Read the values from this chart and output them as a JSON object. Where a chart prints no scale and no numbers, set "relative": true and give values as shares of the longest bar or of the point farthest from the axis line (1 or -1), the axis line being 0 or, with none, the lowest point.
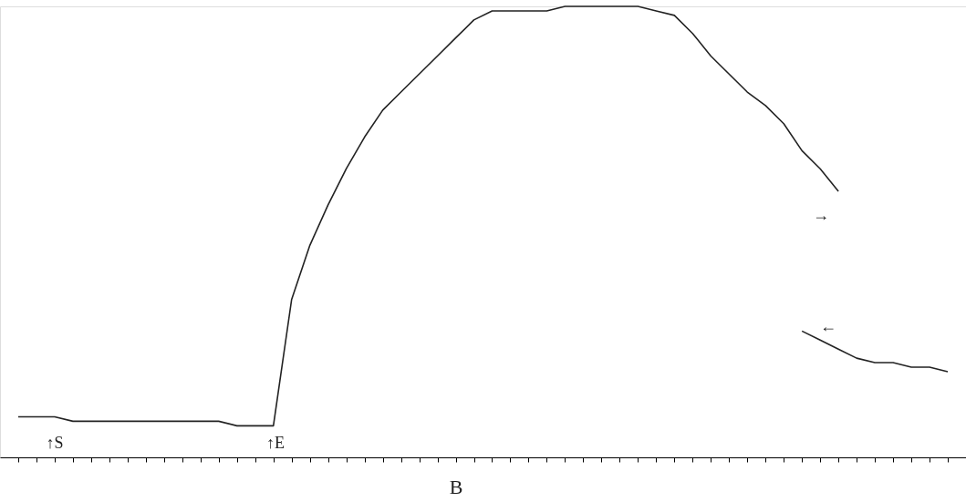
{
  "chart_data": {
    "type": "line",
    "relative": true,
    "xlabel": "B",
    "tick_labels": false,
    "grid": false,
    "categories": [
      null,
      null,
      null,
      null,
      null,
      null,
      null,
      null,
      null,
      null,
      null,
      null,
      null,
      null,
      null,
      null,
      null,
      null,
      null,
      null,
      null,
      null,
      null,
      null,
      null,
      null,
      null,
      null,
      null,
      null,
      null,
      null,
      null,
      null,
      null,
      null,
      null,
      null,
      null,
      null,
      null,
      null,
      null,
      null,
      null,
      null,
      null,
      null,
      null,
      null,
      null,
      null
    ],
    "series": [
      {
        "color": "#222222",
        "values": [
          0.09,
          0.09,
          0.09,
          0.08,
          0.08,
          0.08,
          0.08,
          0.08,
          0.08,
          0.08,
          0.08,
          0.08,
          0.07,
          0.07,
          0.07,
          0.35,
          0.47,
          0.56,
          0.64,
          0.71,
          0.77,
          0.81,
          0.85,
          0.89,
          0.93,
          0.97,
          0.99,
          0.99,
          0.99,
          0.99,
          1.0,
          1.0,
          1.0,
          1.0,
          1.0,
          0.99,
          0.98,
          0.94,
          0.89,
          0.85,
          0.81,
          0.78,
          0.74,
          0.68,
          0.64,
          0.59,
          null,
          null,
          null,
          null,
          null,
          null
        ]
      },
      {
        "color": "#222222",
        "values": [
          null,
          null,
          null,
          null,
          null,
          null,
          null,
          null,
          null,
          null,
          null,
          null,
          null,
          null,
          null,
          null,
          null,
          null,
          null,
          null,
          null,
          null,
          null,
          null,
          null,
          null,
          null,
          null,
          null,
          null,
          null,
          null,
          null,
          null,
          null,
          null,
          null,
          null,
          null,
          null,
          null,
          null,
          null,
          0.28,
          0.26,
          0.24,
          0.22,
          0.21,
          0.21,
          0.2,
          0.2,
          0.19
        ]
      }
    ],
    "annotations": [
      "↑S",
      "↑E",
      "→",
      "←"
    ]
  }
}
